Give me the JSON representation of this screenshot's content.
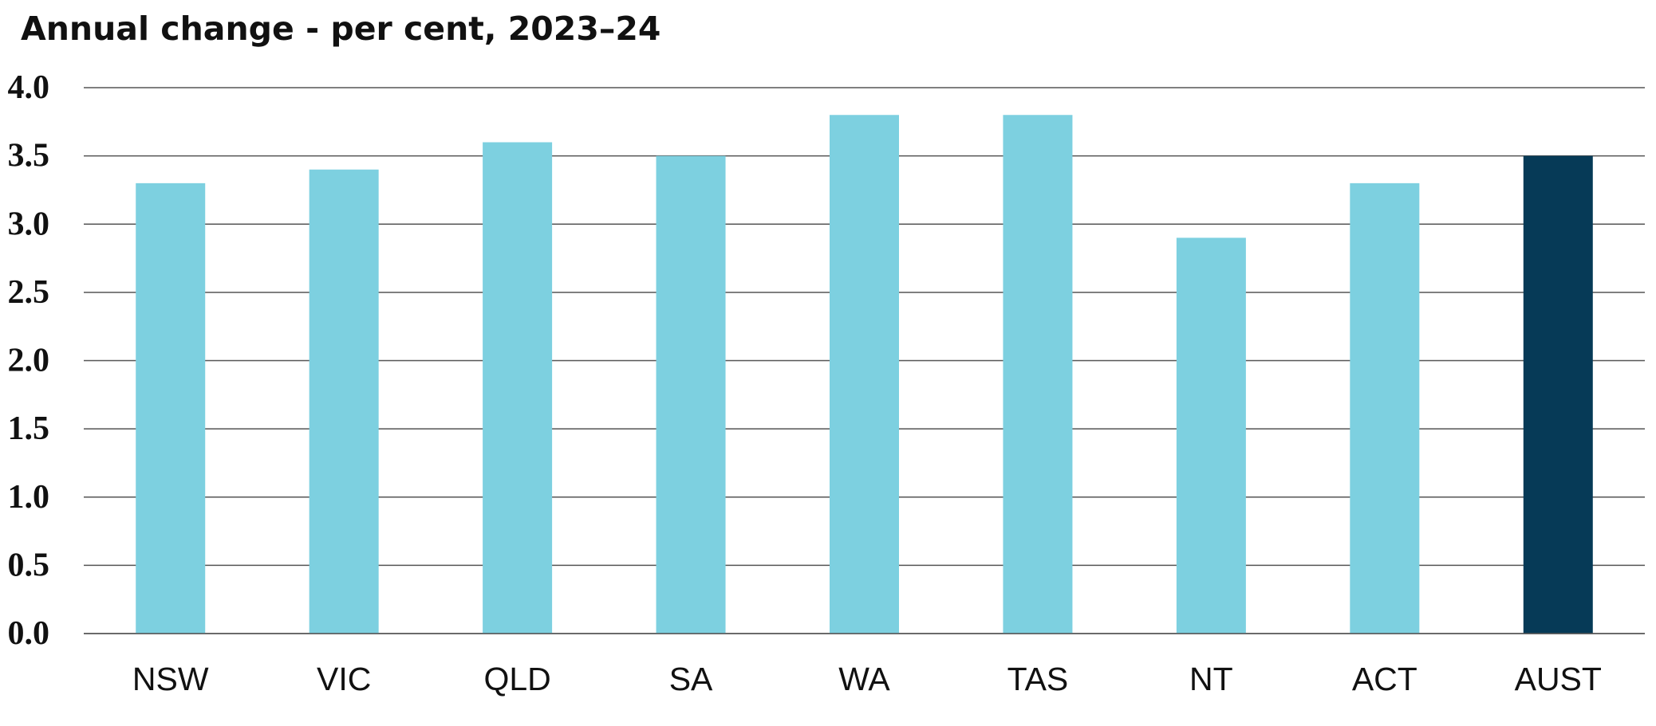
{
  "chart_data": {
    "type": "bar",
    "title": "Annual change - per cent, 2023–24",
    "xlabel": "",
    "ylabel": "",
    "categories": [
      "NSW",
      "VIC",
      "QLD",
      "SA",
      "WA",
      "TAS",
      "NT",
      "ACT",
      "AUST"
    ],
    "values": [
      3.3,
      3.4,
      3.6,
      3.5,
      3.8,
      3.8,
      2.9,
      3.3,
      3.5
    ],
    "highlight_category": "AUST",
    "ylim": [
      0,
      4.0
    ],
    "yticks": [
      "0.0",
      "0.5",
      "1.0",
      "1.5",
      "2.0",
      "2.5",
      "3.0",
      "3.5",
      "4.0"
    ],
    "grid": true,
    "legend": "none",
    "colors": {
      "bar": "#7dd0e0",
      "highlight": "#063a57",
      "grid": "#555555",
      "text": "#111111"
    }
  }
}
